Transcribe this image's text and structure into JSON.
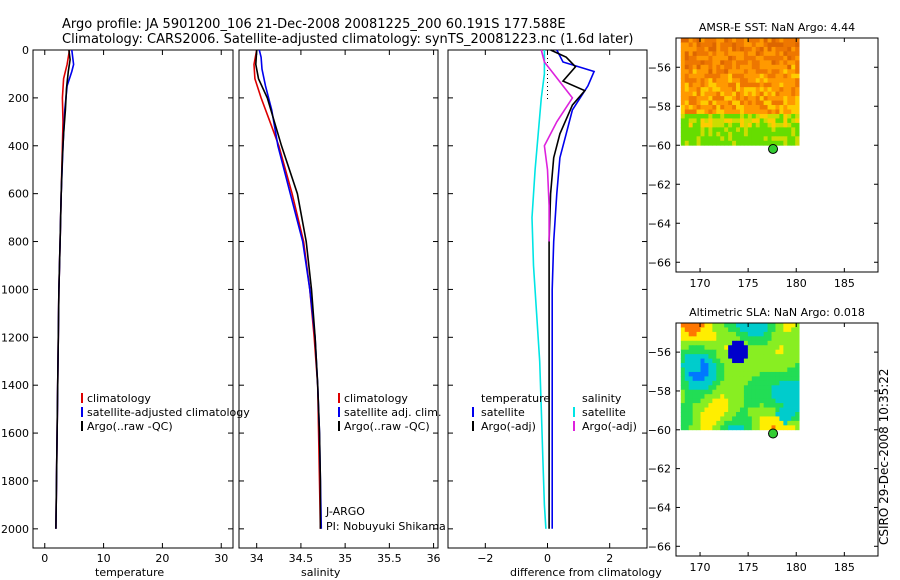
{
  "figure": {
    "title_line1": "Argo profile: JA 5901200_106 21-Dec-2008 20081225_200 60.191S 177.588E",
    "title_line2": "Climatology: CARS2006. Satellite-adjusted climatology: synTS_20081223.nc (1.6d later)",
    "side_label": "CSIRO 29-Dec-2008 10:35:22"
  },
  "chart_data": [
    {
      "id": "temperature",
      "type": "line",
      "xlabel": "temperature",
      "ylabel": "",
      "xlim": [
        -2,
        32
      ],
      "ylim": [
        0,
        2080
      ],
      "y_reversed": true,
      "xticks": [
        0,
        10,
        20,
        30
      ],
      "yticks": [
        0,
        200,
        400,
        600,
        800,
        1000,
        1200,
        1400,
        1600,
        1800,
        2000
      ],
      "legend": {
        "position": "lower-right",
        "entries": [
          "climatology",
          "satellite-adjusted climatology",
          "Argo(..raw -QC)"
        ]
      },
      "series": [
        {
          "name": "climatology",
          "color": "#dd0000",
          "points": [
            [
              4.2,
              0
            ],
            [
              3.8,
              60
            ],
            [
              3.2,
              120
            ],
            [
              3.0,
              200
            ],
            [
              3.1,
              300
            ],
            [
              3.0,
              400
            ],
            [
              2.8,
              600
            ],
            [
              2.6,
              800
            ],
            [
              2.4,
              1000
            ],
            [
              2.3,
              1200
            ],
            [
              2.2,
              1400
            ],
            [
              2.1,
              1600
            ],
            [
              2.0,
              1800
            ],
            [
              1.9,
              2000
            ]
          ]
        },
        {
          "name": "satellite-adjusted climatology",
          "color": "#0000ee",
          "points": [
            [
              4.6,
              0
            ],
            [
              4.9,
              60
            ],
            [
              4.6,
              90
            ],
            [
              3.8,
              150
            ],
            [
              3.4,
              250
            ],
            [
              3.1,
              400
            ],
            [
              2.8,
              600
            ],
            [
              2.6,
              800
            ],
            [
              2.4,
              1000
            ],
            [
              2.3,
              1200
            ],
            [
              2.2,
              1400
            ],
            [
              2.1,
              1600
            ],
            [
              2.0,
              1800
            ],
            [
              1.9,
              2000
            ]
          ]
        },
        {
          "name": "Argo(..raw -QC)",
          "color": "#000000",
          "points": [
            [
              4.1,
              0
            ],
            [
              4.3,
              40
            ],
            [
              4.0,
              90
            ],
            [
              3.7,
              160
            ],
            [
              3.5,
              250
            ],
            [
              3.2,
              350
            ],
            [
              3.0,
              450
            ],
            [
              2.8,
              600
            ],
            [
              2.6,
              800
            ],
            [
              2.4,
              1000
            ],
            [
              2.3,
              1200
            ],
            [
              2.2,
              1400
            ],
            [
              2.1,
              1600
            ],
            [
              2.0,
              1800
            ],
            [
              1.9,
              2000
            ]
          ]
        }
      ]
    },
    {
      "id": "salinity",
      "type": "line",
      "xlabel": "salinity",
      "ylabel": "",
      "xlim": [
        33.8,
        36.05
      ],
      "ylim": [
        0,
        2080
      ],
      "y_reversed": true,
      "xticks": [
        34,
        34.5,
        35,
        35.5,
        36
      ],
      "xtick_labels": [
        "34",
        "34.5",
        "35",
        "35.5",
        "36"
      ],
      "legend": {
        "position": "lower-right",
        "entries": [
          "climatology",
          "satellite adj. clim.",
          "Argo(..raw -QC)"
        ]
      },
      "annotations": [
        "J-ARGO",
        "PI: Nobuyuki Shikama"
      ],
      "series": [
        {
          "name": "climatology",
          "color": "#dd0000",
          "points": [
            [
              34.0,
              0
            ],
            [
              33.97,
              60
            ],
            [
              33.98,
              120
            ],
            [
              34.05,
              200
            ],
            [
              34.15,
              300
            ],
            [
              34.25,
              400
            ],
            [
              34.4,
              600
            ],
            [
              34.53,
              800
            ],
            [
              34.6,
              1000
            ],
            [
              34.65,
              1200
            ],
            [
              34.69,
              1400
            ],
            [
              34.7,
              1600
            ],
            [
              34.71,
              1800
            ],
            [
              34.72,
              2000
            ]
          ]
        },
        {
          "name": "satellite adj. clim.",
          "color": "#0000ee",
          "points": [
            [
              34.03,
              0
            ],
            [
              34.05,
              30
            ],
            [
              34.06,
              80
            ],
            [
              34.1,
              150
            ],
            [
              34.17,
              250
            ],
            [
              34.24,
              400
            ],
            [
              34.38,
              600
            ],
            [
              34.52,
              800
            ],
            [
              34.6,
              1000
            ],
            [
              34.66,
              1200
            ],
            [
              34.69,
              1400
            ],
            [
              34.71,
              1600
            ],
            [
              34.72,
              1800
            ],
            [
              34.73,
              2000
            ]
          ]
        },
        {
          "name": "Argo(..raw -QC)",
          "color": "#000000",
          "points": [
            [
              34.0,
              0
            ],
            [
              33.99,
              60
            ],
            [
              34.02,
              120
            ],
            [
              34.12,
              200
            ],
            [
              34.2,
              300
            ],
            [
              34.28,
              400
            ],
            [
              34.46,
              600
            ],
            [
              34.56,
              800
            ],
            [
              34.62,
              1000
            ],
            [
              34.66,
              1200
            ],
            [
              34.69,
              1400
            ],
            [
              34.71,
              1600
            ],
            [
              34.72,
              1800
            ],
            [
              34.72,
              2000
            ]
          ]
        }
      ]
    },
    {
      "id": "difference",
      "type": "line",
      "xlabel": "difference from climatology",
      "ylabel": "",
      "xlim": [
        -3.2,
        3.2
      ],
      "ylim": [
        0,
        2080
      ],
      "y_reversed": true,
      "xticks": [
        -2,
        0,
        2
      ],
      "legend": {
        "position": "lower-center",
        "columns": [
          {
            "heading": "temperature",
            "entries": [
              "satellite",
              "Argo(-adj)"
            ]
          },
          {
            "heading": "salinity",
            "entries": [
              "satellite",
              "Argo(-adj)"
            ]
          }
        ]
      },
      "series": [
        {
          "name": "temperature satellite",
          "color": "#0000ee",
          "points": [
            [
              0.3,
              0
            ],
            [
              0.5,
              50
            ],
            [
              1.5,
              90
            ],
            [
              1.3,
              150
            ],
            [
              0.8,
              250
            ],
            [
              0.6,
              350
            ],
            [
              0.4,
              450
            ],
            [
              0.3,
              600
            ],
            [
              0.2,
              800
            ],
            [
              0.15,
              1000
            ],
            [
              0.15,
              1200
            ],
            [
              0.15,
              1400
            ],
            [
              0.15,
              1600
            ],
            [
              0.15,
              1800
            ],
            [
              0.15,
              2000
            ]
          ]
        },
        {
          "name": "temperature Argo(-adj)",
          "color": "#000000",
          "points": [
            [
              0.1,
              0
            ],
            [
              0.6,
              30
            ],
            [
              0.9,
              70
            ],
            [
              0.5,
              130
            ],
            [
              1.2,
              170
            ],
            [
              0.8,
              230
            ],
            [
              0.4,
              350
            ],
            [
              0.2,
              450
            ],
            [
              0.1,
              600
            ],
            [
              0.05,
              800
            ],
            [
              0.05,
              1000
            ],
            [
              0.05,
              1200
            ],
            [
              0.05,
              1400
            ],
            [
              0.05,
              1600
            ],
            [
              0.05,
              1800
            ],
            [
              0.05,
              2000
            ]
          ]
        },
        {
          "name": "salinity satellite",
          "color": "#00e5e5",
          "points": [
            [
              -0.1,
              0
            ],
            [
              -0.1,
              100
            ],
            [
              -0.2,
              200
            ],
            [
              -0.3,
              350
            ],
            [
              -0.4,
              500
            ],
            [
              -0.5,
              700
            ],
            [
              -0.45,
              900
            ],
            [
              -0.35,
              1100
            ],
            [
              -0.25,
              1300
            ],
            [
              -0.2,
              1500
            ],
            [
              -0.15,
              1700
            ],
            [
              -0.1,
              1900
            ],
            [
              -0.05,
              2000
            ]
          ]
        },
        {
          "name": "salinity Argo(-adj)",
          "color": "#dd22dd",
          "points": [
            [
              -0.2,
              0
            ],
            [
              -0.1,
              50
            ],
            [
              0.2,
              100
            ],
            [
              0.5,
              150
            ],
            [
              0.8,
              200
            ],
            [
              0.3,
              300
            ],
            [
              -0.1,
              400
            ],
            [
              0.0,
              500
            ],
            [
              0.05,
              650
            ],
            [
              0.05,
              800
            ]
          ]
        }
      ]
    },
    {
      "id": "sst",
      "type": "heatmap",
      "title": "AMSR-E SST: NaN Argo: 4.44",
      "xlim": [
        167.5,
        188.5
      ],
      "ylim": [
        -66.5,
        -54.5
      ],
      "xticks": [
        170,
        175,
        180,
        185
      ],
      "yticks": [
        -56,
        -58,
        -60,
        -62,
        -64,
        -66
      ],
      "data_extent": {
        "lon": [
          168,
          180.3
        ],
        "lat": [
          -60,
          -54.5
        ]
      },
      "argo_position": {
        "lon": 177.588,
        "lat": -60.191
      },
      "palette": [
        "#00cc33",
        "#66dd00",
        "#ccdd00",
        "#ffcc00",
        "#ff9900",
        "#ee7700",
        "#dd6600"
      ]
    },
    {
      "id": "sla",
      "type": "heatmap",
      "title": "Altimetric SLA: NaN Argo: 0.018",
      "xlim": [
        167.5,
        188.5
      ],
      "ylim": [
        -66.5,
        -54.5
      ],
      "xticks": [
        170,
        175,
        180,
        185
      ],
      "yticks": [
        -56,
        -58,
        -60,
        -62,
        -64,
        -66
      ],
      "data_extent": {
        "lon": [
          168,
          180.3
        ],
        "lat": [
          -60,
          -54.5
        ]
      },
      "argo_position": {
        "lon": 177.588,
        "lat": -60.191
      },
      "palette": [
        "#0000cc",
        "#0077ff",
        "#00cccc",
        "#22dd55",
        "#88ee22",
        "#ffee00",
        "#ff7700",
        "#dd0000"
      ]
    }
  ]
}
